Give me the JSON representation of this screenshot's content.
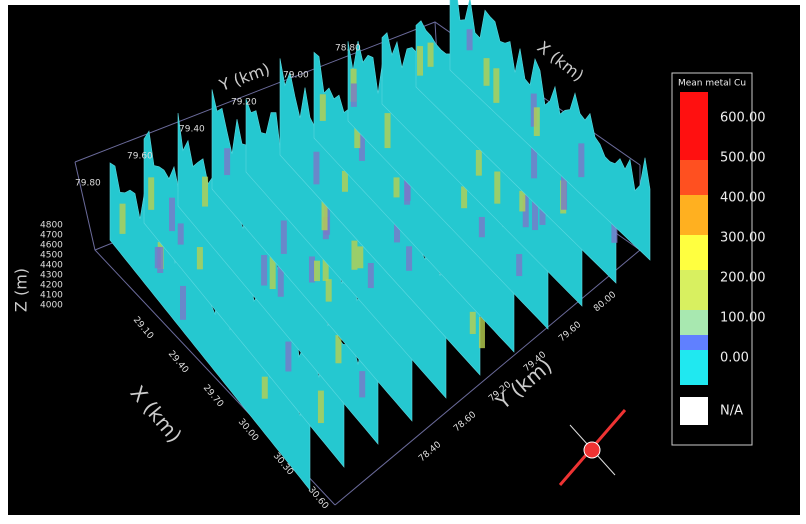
{
  "axes": {
    "y_top_title": "Y (km)",
    "x_top_title": "X (km)",
    "z_title": "Z (m)",
    "x_bottom_title": "X (km)",
    "y_bottom_title": "Y (km)",
    "y_top_ticks": [
      "79.80",
      "79.60",
      "79.40",
      "79.20",
      "79.00",
      "78.80"
    ],
    "z_ticks": [
      "4800",
      "4700",
      "4600",
      "4500",
      "4400",
      "4300",
      "4200",
      "4100",
      "4000"
    ],
    "x_bottom_ticks": [
      "29.10",
      "29.40",
      "29.70",
      "30.00",
      "30.30",
      "30.60"
    ],
    "y_bottom_ticks": [
      "78.40",
      "78.60",
      "79.20",
      "79.40",
      "79.60",
      "80.00"
    ]
  },
  "legend": {
    "title": "Mean metal Cu",
    "labels": [
      "600.00",
      "500.00",
      "400.00",
      "300.00",
      "200.00",
      "100.00",
      "0.00"
    ],
    "na": "N/A"
  }
}
